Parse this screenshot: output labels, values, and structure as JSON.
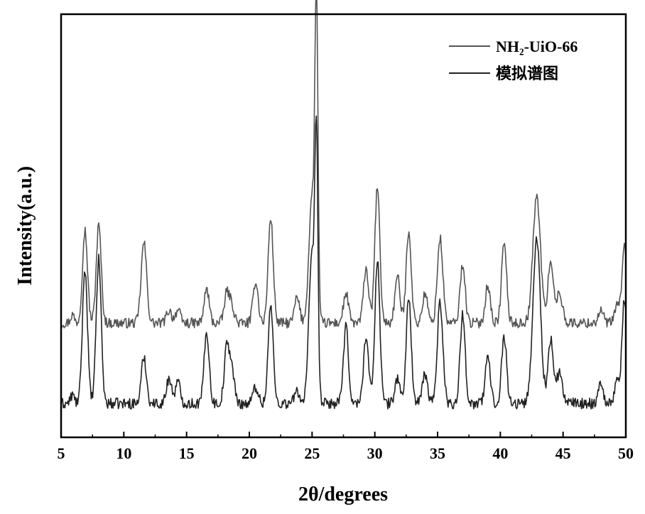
{
  "chart_data": {
    "type": "line",
    "title": "",
    "xlabel": "2θ/degrees",
    "ylabel": "Intensity(a.u.)",
    "xlim": [
      5,
      50
    ],
    "ylim": [
      0,
      100
    ],
    "xticks": [
      "5",
      "10",
      "15",
      "20",
      "25",
      "30",
      "35",
      "40",
      "45",
      "50"
    ],
    "legend_position": "top-right",
    "y_tick_labels": false,
    "series": [
      {
        "name": "NH₂-UiO-66",
        "color": "#555555",
        "baseline": 27,
        "noise": 1.2,
        "peaks": [
          [
            5.9,
            2,
            0.15
          ],
          [
            6.9,
            22,
            0.2
          ],
          [
            8.0,
            23,
            0.2
          ],
          [
            11.6,
            19,
            0.22
          ],
          [
            13.6,
            3,
            0.2
          ],
          [
            14.3,
            3,
            0.2
          ],
          [
            16.6,
            8,
            0.2
          ],
          [
            18.2,
            7,
            0.2
          ],
          [
            18.6,
            4,
            0.2
          ],
          [
            20.5,
            10,
            0.2
          ],
          [
            21.7,
            25,
            0.2
          ],
          [
            23.8,
            6,
            0.2
          ],
          [
            25.0,
            30,
            0.25
          ],
          [
            25.35,
            70,
            0.12
          ],
          [
            27.7,
            7,
            0.2
          ],
          [
            29.3,
            13,
            0.2
          ],
          [
            30.2,
            32,
            0.2
          ],
          [
            31.8,
            11,
            0.2
          ],
          [
            32.7,
            22,
            0.2
          ],
          [
            34.0,
            7,
            0.2
          ],
          [
            35.2,
            20,
            0.22
          ],
          [
            37.0,
            14,
            0.2
          ],
          [
            39.0,
            9,
            0.2
          ],
          [
            40.3,
            19,
            0.2
          ],
          [
            42.9,
            30,
            0.3
          ],
          [
            44.0,
            15,
            0.2
          ],
          [
            44.7,
            7,
            0.25
          ],
          [
            48.0,
            3,
            0.2
          ],
          [
            49.3,
            4,
            0.2
          ],
          [
            49.9,
            18,
            0.2
          ]
        ]
      },
      {
        "name": "模拟谱图",
        "color": "#222222",
        "baseline": 8,
        "noise": 1.3,
        "peaks": [
          [
            5.9,
            2,
            0.15
          ],
          [
            6.9,
            32,
            0.2
          ],
          [
            8.0,
            34,
            0.2
          ],
          [
            11.6,
            11,
            0.2
          ],
          [
            13.6,
            6,
            0.2
          ],
          [
            14.3,
            5,
            0.2
          ],
          [
            16.6,
            17,
            0.2
          ],
          [
            18.2,
            13,
            0.2
          ],
          [
            18.6,
            8,
            0.2
          ],
          [
            20.5,
            4,
            0.2
          ],
          [
            21.7,
            23,
            0.2
          ],
          [
            23.8,
            3,
            0.2
          ],
          [
            25.0,
            35,
            0.25
          ],
          [
            25.35,
            55,
            0.12
          ],
          [
            27.7,
            18,
            0.2
          ],
          [
            29.3,
            16,
            0.2
          ],
          [
            30.2,
            34,
            0.2
          ],
          [
            31.8,
            6,
            0.2
          ],
          [
            32.7,
            25,
            0.2
          ],
          [
            34.0,
            7,
            0.2
          ],
          [
            35.2,
            24,
            0.22
          ],
          [
            37.0,
            21,
            0.2
          ],
          [
            39.0,
            11,
            0.2
          ],
          [
            40.3,
            16,
            0.2
          ],
          [
            42.9,
            39,
            0.3
          ],
          [
            44.0,
            15,
            0.2
          ],
          [
            44.7,
            7,
            0.25
          ],
          [
            48.0,
            5,
            0.2
          ],
          [
            49.3,
            5,
            0.2
          ],
          [
            49.9,
            25,
            0.2
          ]
        ]
      }
    ]
  }
}
